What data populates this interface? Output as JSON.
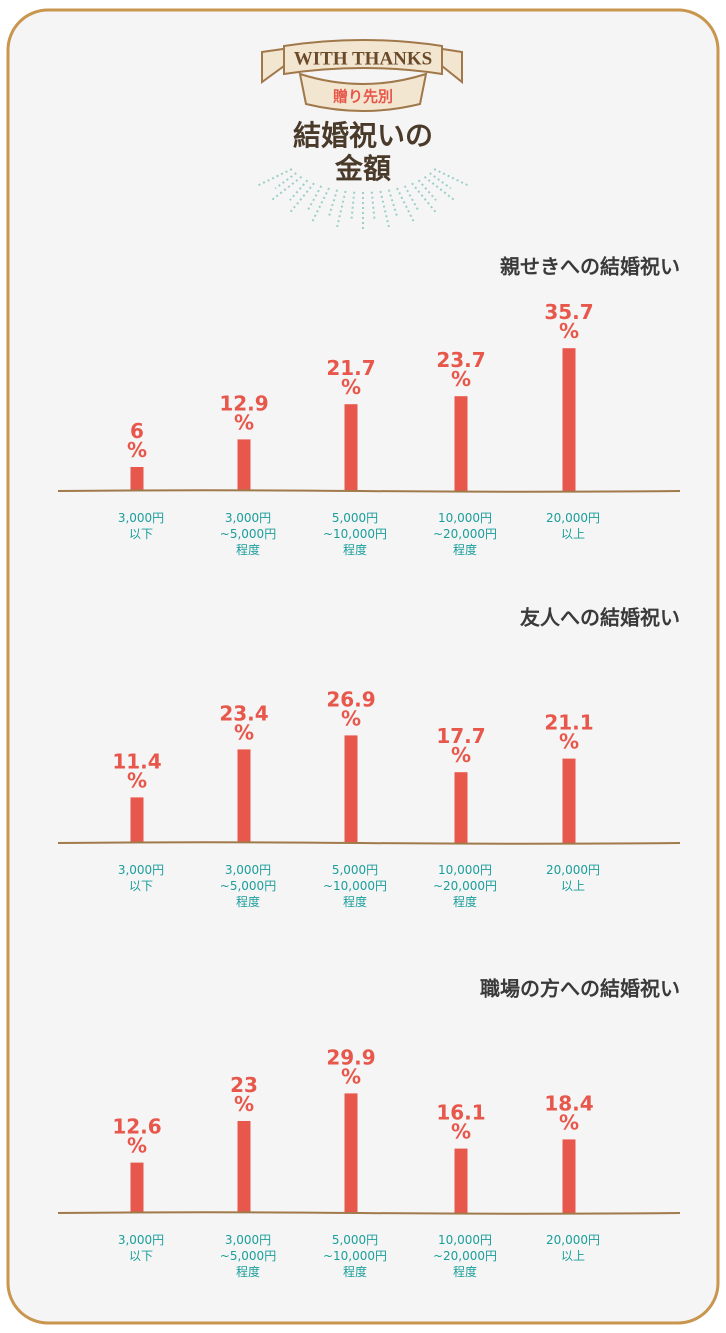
{
  "header": {
    "ribbon": "WITH THANKS",
    "subtitle": "贈り先別",
    "title_lines": [
      "結婚祝いの",
      "金額"
    ]
  },
  "chart_data": [
    {
      "type": "bar",
      "title": "親せきへの結婚祝い",
      "categories": [
        "3,000円\n以下",
        "3,000円\n~5,000円\n程度",
        "5,000円\n~10,000円\n程度",
        "10,000円\n~20,000円\n程度",
        "20,000円\n以上"
      ],
      "values": [
        6,
        12.9,
        21.7,
        23.7,
        35.7
      ],
      "value_labels": [
        "6%",
        "12.9%",
        "21.7%",
        "23.7%",
        "35.7%"
      ],
      "color": "#e8574b"
    },
    {
      "type": "bar",
      "title": "友人への結婚祝い",
      "categories": [
        "3,000円\n以下",
        "3,000円\n~5,000円\n程度",
        "5,000円\n~10,000円\n程度",
        "10,000円\n~20,000円\n程度",
        "20,000円\n以上"
      ],
      "values": [
        11.4,
        23.4,
        26.9,
        17.7,
        21.1
      ],
      "value_labels": [
        "11.4%",
        "23.4%",
        "26.9%",
        "17.7%",
        "21.1%"
      ],
      "color": "#e8574b"
    },
    {
      "type": "bar",
      "title": "職場の方への結婚祝い",
      "categories": [
        "3,000円\n以下",
        "3,000円\n~5,000円\n程度",
        "5,000円\n~10,000円\n程度",
        "10,000円\n~20,000円\n程度",
        "20,000円\n以上"
      ],
      "values": [
        12.6,
        23,
        29.9,
        16.1,
        18.4
      ],
      "value_labels": [
        "12.6%",
        "23%",
        "29.9%",
        "16.1%",
        "18.4%"
      ],
      "color": "#e8574b"
    }
  ]
}
